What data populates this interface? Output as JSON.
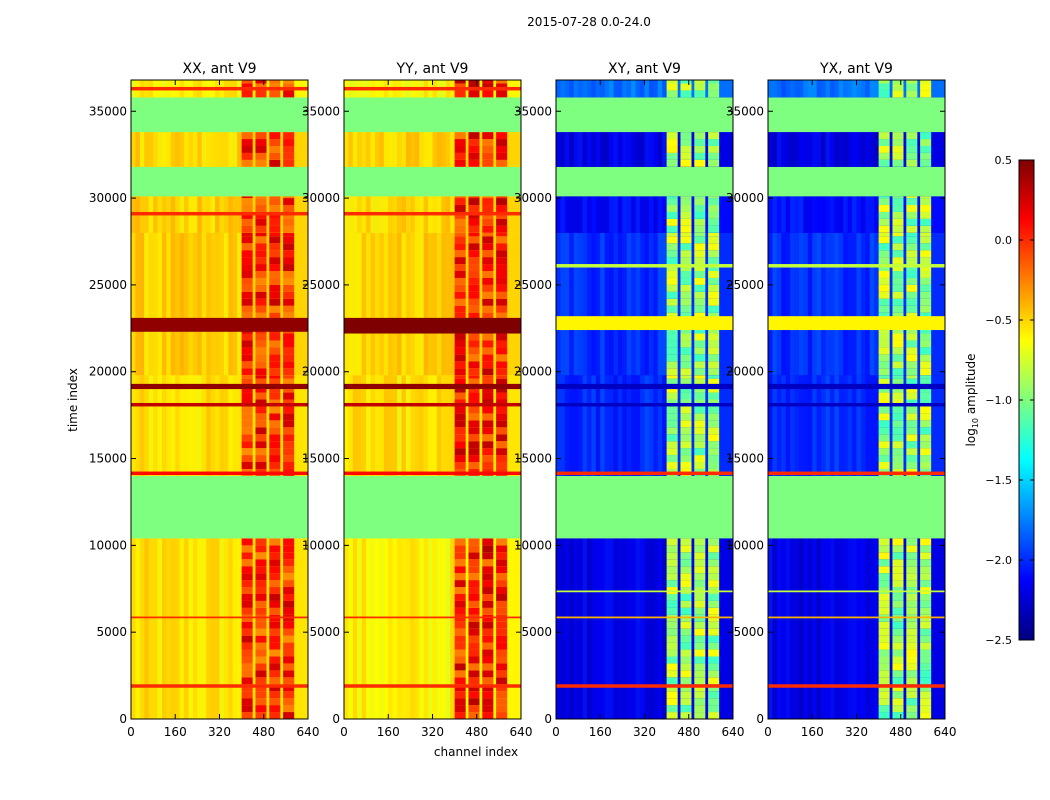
{
  "figure": {
    "suptitle": "2015-07-28 0.0-24.0"
  },
  "colormap": {
    "name": "jet",
    "stops": [
      "#00007f",
      "#0000ff",
      "#007fff",
      "#00ffff",
      "#7fff7f",
      "#ffff00",
      "#ff7f00",
      "#ff0000",
      "#7f0000"
    ]
  },
  "chart_data": {
    "type": "heatmap",
    "shared_xlabel": "channel index",
    "shared_ylabel": "time index",
    "xlim": [
      0,
      640
    ],
    "ylim": [
      0,
      36800
    ],
    "xticks": [
      0,
      160,
      320,
      480,
      640
    ],
    "yticks": [
      0,
      5000,
      10000,
      15000,
      20000,
      25000,
      30000,
      35000
    ],
    "colorbar": {
      "label": "log10 amplitude",
      "label_prefix": "log",
      "label_sub": "10",
      "label_suffix": " amplitude",
      "vmin": -2.5,
      "vmax": 0.5,
      "ticks": [
        0.5,
        0.0,
        -0.5,
        -1.0,
        -1.5,
        -2.0,
        -2.5
      ],
      "tick_labels": [
        "0.5",
        "0.0",
        "−0.5",
        "−1.0",
        "−1.5",
        "−2.0",
        "−2.5"
      ]
    },
    "panels": [
      {
        "id": "xx",
        "title": "XX, ant V9",
        "ytick_labels": [
          "0",
          "5000",
          "10000",
          "15000",
          "20000",
          "25000",
          "30000",
          "35000"
        ],
        "base_value": -0.55,
        "rfi_value": 0.0,
        "blocks": [
          {
            "t0": 0,
            "t1": 10400,
            "value": -0.55
          },
          {
            "t0": 10400,
            "t1": 14000,
            "value": -1.0
          },
          {
            "t0": 14000,
            "t1": 19800,
            "value": -0.55
          },
          {
            "t0": 19800,
            "t1": 28000,
            "value": -0.5
          },
          {
            "t0": 28000,
            "t1": 30100,
            "value": -0.5
          },
          {
            "t0": 30100,
            "t1": 31800,
            "value": -1.0
          },
          {
            "t0": 31800,
            "t1": 33800,
            "value": -0.5
          },
          {
            "t0": 33800,
            "t1": 35800,
            "value": -1.0
          },
          {
            "t0": 35800,
            "t1": 36800,
            "value": -0.6
          }
        ],
        "bands": [
          {
            "t0": 22300,
            "t1": 23100,
            "value": 0.45
          },
          {
            "t0": 19000,
            "t1": 19300,
            "value": 0.45
          },
          {
            "t0": 18000,
            "t1": 18200,
            "value": 0.3
          },
          {
            "t0": 14050,
            "t1": 14250,
            "value": 0.1
          },
          {
            "t0": 1800,
            "t1": 2000,
            "value": 0.0
          },
          {
            "t0": 5800,
            "t1": 5900,
            "value": 0.0
          },
          {
            "t0": 29000,
            "t1": 29200,
            "value": 0.0
          },
          {
            "t0": 36200,
            "t1": 36400,
            "value": 0.0
          }
        ]
      },
      {
        "id": "yy",
        "title": "YY, ant V9",
        "ytick_labels": [
          "0",
          "5000",
          "10000",
          "15000",
          "20000",
          "25000",
          "30000",
          "35000"
        ],
        "base_value": -0.6,
        "rfi_value": 0.05,
        "blocks": [
          {
            "t0": 0,
            "t1": 10400,
            "value": -0.6
          },
          {
            "t0": 10400,
            "t1": 14000,
            "value": -1.0
          },
          {
            "t0": 14000,
            "t1": 19800,
            "value": -0.55
          },
          {
            "t0": 19800,
            "t1": 28000,
            "value": -0.5
          },
          {
            "t0": 28000,
            "t1": 30100,
            "value": -0.5
          },
          {
            "t0": 30100,
            "t1": 31800,
            "value": -1.0
          },
          {
            "t0": 31800,
            "t1": 33800,
            "value": -0.5
          },
          {
            "t0": 33800,
            "t1": 35800,
            "value": -1.0
          },
          {
            "t0": 35800,
            "t1": 36800,
            "value": -0.6
          }
        ],
        "bands": [
          {
            "t0": 22200,
            "t1": 23100,
            "value": 0.5
          },
          {
            "t0": 19000,
            "t1": 19300,
            "value": 0.45
          },
          {
            "t0": 18000,
            "t1": 18200,
            "value": 0.3
          },
          {
            "t0": 14050,
            "t1": 14250,
            "value": 0.1
          },
          {
            "t0": 1800,
            "t1": 2000,
            "value": 0.0
          },
          {
            "t0": 5800,
            "t1": 5900,
            "value": 0.0
          },
          {
            "t0": 29000,
            "t1": 29200,
            "value": 0.0
          },
          {
            "t0": 36200,
            "t1": 36400,
            "value": 0.0
          }
        ]
      },
      {
        "id": "xy",
        "title": "XY, ant V9",
        "ytick_labels": [
          "0",
          "5000",
          "10000",
          "15000",
          "20000",
          "25000",
          "30000",
          "35000"
        ],
        "base_value": -2.2,
        "rfi_value": -0.9,
        "blocks": [
          {
            "t0": 0,
            "t1": 10400,
            "value": -2.2
          },
          {
            "t0": 10400,
            "t1": 14000,
            "value": -1.0
          },
          {
            "t0": 14000,
            "t1": 19800,
            "value": -2.0
          },
          {
            "t0": 19800,
            "t1": 28000,
            "value": -2.0
          },
          {
            "t0": 28000,
            "t1": 30100,
            "value": -2.1
          },
          {
            "t0": 30100,
            "t1": 31800,
            "value": -1.0
          },
          {
            "t0": 31800,
            "t1": 33800,
            "value": -2.2
          },
          {
            "t0": 33800,
            "t1": 35800,
            "value": -1.0
          },
          {
            "t0": 35800,
            "t1": 36800,
            "value": -1.8
          }
        ],
        "bands": [
          {
            "t0": 22400,
            "t1": 23200,
            "value": -0.6
          },
          {
            "t0": 19000,
            "t1": 19300,
            "value": -2.3
          },
          {
            "t0": 18000,
            "t1": 18200,
            "value": -2.3
          },
          {
            "t0": 14050,
            "t1": 14250,
            "value": 0.0
          },
          {
            "t0": 1800,
            "t1": 2000,
            "value": 0.0
          },
          {
            "t0": 5800,
            "t1": 5900,
            "value": -0.4
          },
          {
            "t0": 7300,
            "t1": 7400,
            "value": -0.8
          },
          {
            "t0": 26000,
            "t1": 26200,
            "value": -0.8
          }
        ]
      },
      {
        "id": "yx",
        "title": "YX, ant V9",
        "ytick_labels": [
          "0",
          "5000",
          "10000",
          "15000",
          "20000",
          "25000",
          "30000",
          "35000"
        ],
        "base_value": -2.2,
        "rfi_value": -0.9,
        "blocks": [
          {
            "t0": 0,
            "t1": 10400,
            "value": -2.2
          },
          {
            "t0": 10400,
            "t1": 14000,
            "value": -1.0
          },
          {
            "t0": 14000,
            "t1": 19800,
            "value": -2.0
          },
          {
            "t0": 19800,
            "t1": 28000,
            "value": -2.0
          },
          {
            "t0": 28000,
            "t1": 30100,
            "value": -2.1
          },
          {
            "t0": 30100,
            "t1": 31800,
            "value": -1.0
          },
          {
            "t0": 31800,
            "t1": 33800,
            "value": -2.2
          },
          {
            "t0": 33800,
            "t1": 35800,
            "value": -1.0
          },
          {
            "t0": 35800,
            "t1": 36800,
            "value": -1.8
          }
        ],
        "bands": [
          {
            "t0": 22400,
            "t1": 23200,
            "value": -0.6
          },
          {
            "t0": 19000,
            "t1": 19300,
            "value": -2.3
          },
          {
            "t0": 18000,
            "t1": 18200,
            "value": -2.3
          },
          {
            "t0": 14050,
            "t1": 14250,
            "value": 0.0
          },
          {
            "t0": 1800,
            "t1": 2000,
            "value": 0.0
          },
          {
            "t0": 5800,
            "t1": 5900,
            "value": -0.4
          },
          {
            "t0": 7300,
            "t1": 7400,
            "value": -0.8
          },
          {
            "t0": 26000,
            "t1": 26200,
            "value": -0.8
          }
        ]
      }
    ],
    "rfi_channels": [
      [
        400,
        440
      ],
      [
        450,
        490
      ],
      [
        500,
        540
      ],
      [
        550,
        590
      ]
    ]
  }
}
